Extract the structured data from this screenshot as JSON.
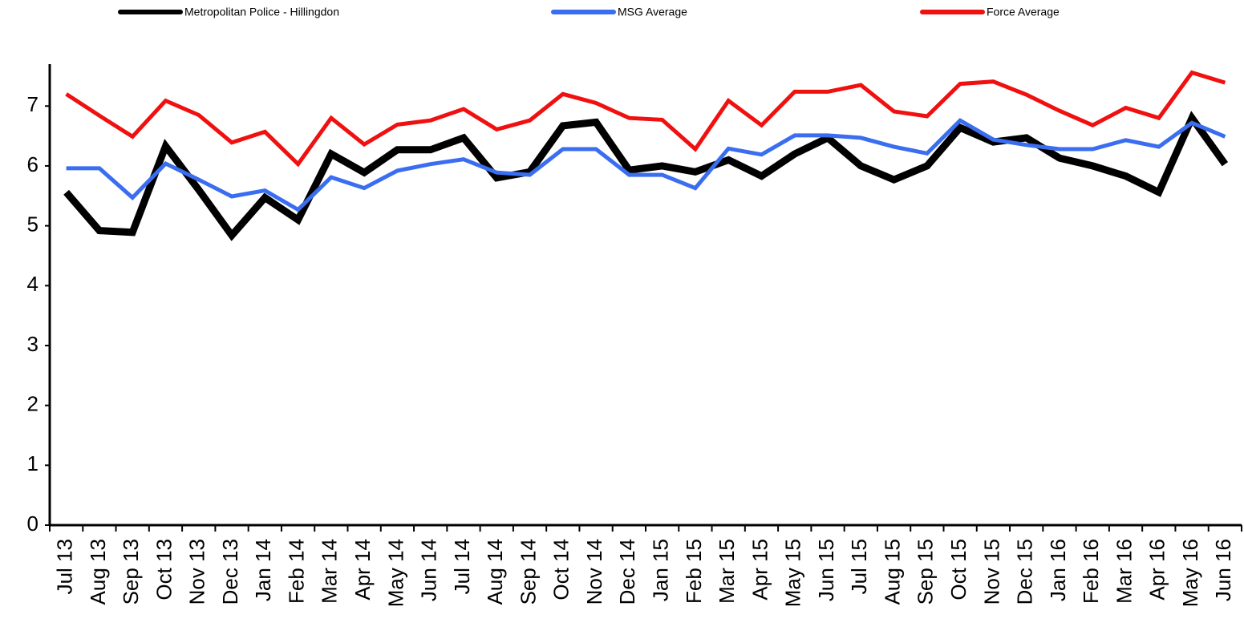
{
  "chart_data": {
    "type": "line",
    "categories": [
      "Jul 13",
      "Aug 13",
      "Sep 13",
      "Oct 13",
      "Nov 13",
      "Dec 13",
      "Jan 14",
      "Feb 14",
      "Mar 14",
      "Apr 14",
      "May 14",
      "Jun 14",
      "Jul 14",
      "Aug 14",
      "Sep 14",
      "Oct 14",
      "Nov 14",
      "Dec 14",
      "Jan 15",
      "Feb 15",
      "Mar 15",
      "Apr 15",
      "May 15",
      "Jun 15",
      "Jul 15",
      "Aug 15",
      "Sep 15",
      "Oct 15",
      "Nov 15",
      "Dec 15",
      "Jan 16",
      "Feb 16",
      "Mar 16",
      "Apr 16",
      "May 16",
      "Jun 16"
    ],
    "series": [
      {
        "name": "Metropolitan Police - Hillingdon",
        "color": "#000000",
        "values": [
          5.56,
          4.92,
          4.89,
          6.33,
          5.6,
          4.84,
          5.47,
          5.1,
          6.2,
          5.89,
          6.27,
          6.27,
          6.47,
          5.8,
          5.9,
          6.67,
          6.73,
          5.93,
          6.0,
          5.9,
          6.1,
          5.83,
          6.2,
          6.47,
          6.0,
          5.77,
          6.0,
          6.64,
          6.4,
          6.47,
          6.13,
          6.0,
          5.83,
          5.56,
          6.8,
          6.03
        ]
      },
      {
        "name": "MSG Average",
        "color": "#3a6df0",
        "values": [
          5.96,
          5.96,
          5.47,
          6.04,
          5.77,
          5.49,
          5.59,
          5.27,
          5.81,
          5.63,
          5.92,
          6.03,
          6.11,
          5.89,
          5.85,
          6.28,
          6.28,
          5.85,
          5.85,
          5.63,
          6.29,
          6.19,
          6.51,
          6.51,
          6.47,
          6.32,
          6.21,
          6.76,
          6.44,
          6.35,
          6.28,
          6.28,
          6.43,
          6.32,
          6.72,
          6.49
        ]
      },
      {
        "name": "Force Average",
        "color": "#f01010",
        "values": [
          7.2,
          6.84,
          6.49,
          7.09,
          6.85,
          6.39,
          6.57,
          6.03,
          6.8,
          6.36,
          6.69,
          6.76,
          6.95,
          6.61,
          6.76,
          7.2,
          7.05,
          6.8,
          6.77,
          6.28,
          7.09,
          6.68,
          7.24,
          7.24,
          7.35,
          6.91,
          6.83,
          7.37,
          7.41,
          7.19,
          6.92,
          6.68,
          6.97,
          6.8,
          7.56,
          7.39
        ]
      }
    ],
    "ylim": [
      0,
      7.7
    ],
    "yticks": [
      0,
      1,
      2,
      3,
      4,
      5,
      6,
      7
    ],
    "grid": false
  }
}
